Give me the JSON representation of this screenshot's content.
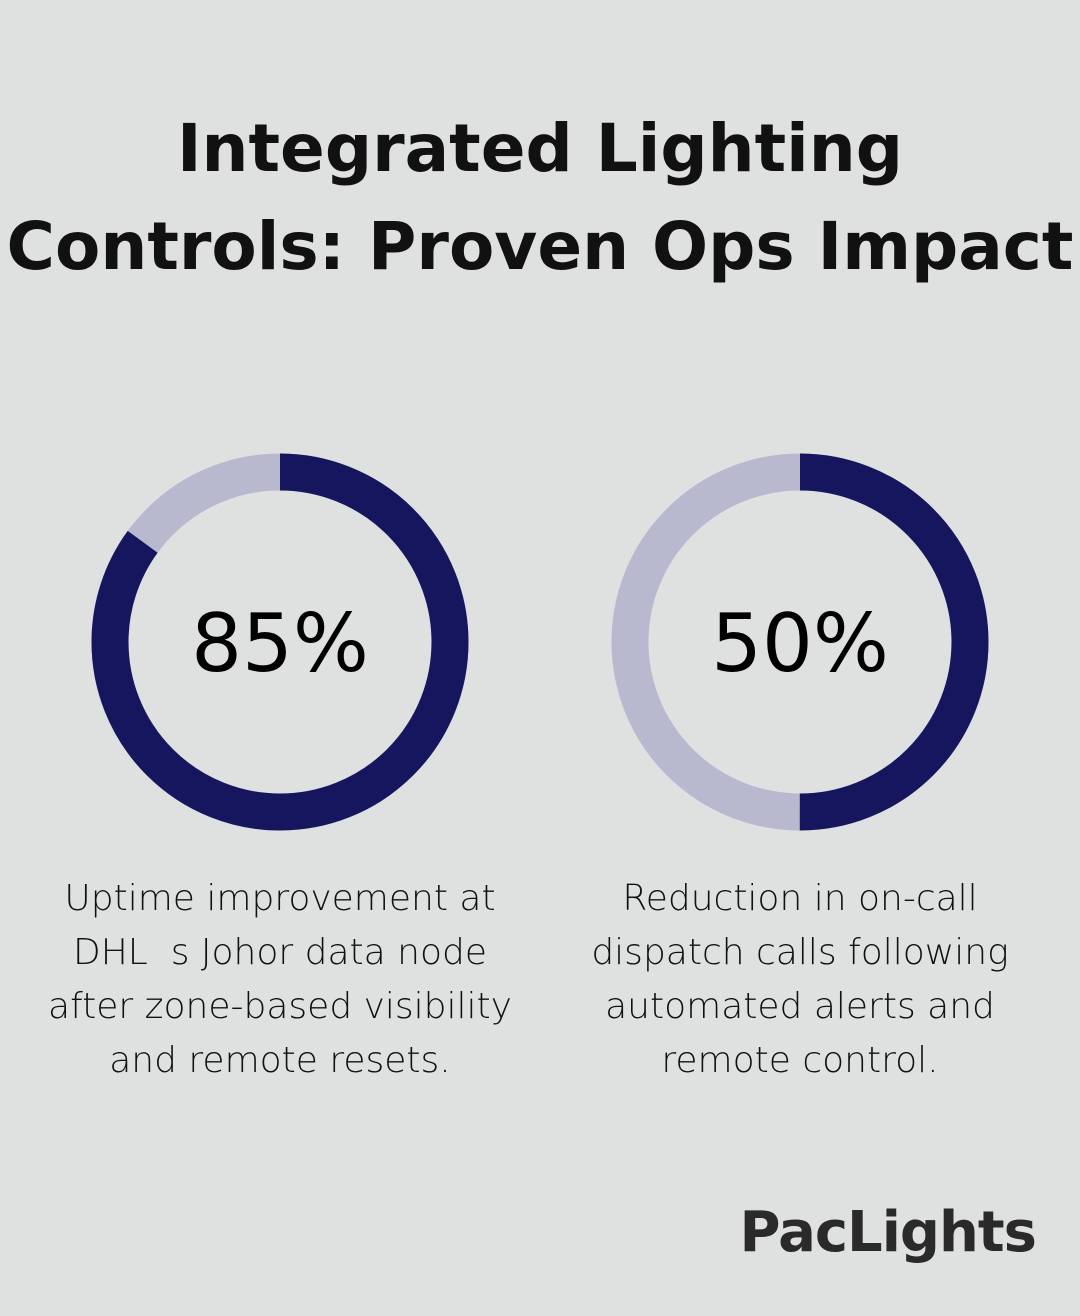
{
  "title": "Integrated Lighting Controls: Proven Ops Impact",
  "colors": {
    "background": "#dfe1e0",
    "filled": "#16165e",
    "remaining": "#b8b9cf"
  },
  "chart_data": [
    {
      "type": "pie",
      "variant": "donut",
      "values": [
        85,
        15
      ],
      "label": "85%",
      "description": "Uptime improvement at DHL  s Johor data node after zone-based visibility and remote resets."
    },
    {
      "type": "pie",
      "variant": "donut",
      "values": [
        50,
        50
      ],
      "label": "50%",
      "description": "Reduction in on-call dispatch calls following automated alerts and remote control."
    }
  ],
  "logo": "PacLights"
}
